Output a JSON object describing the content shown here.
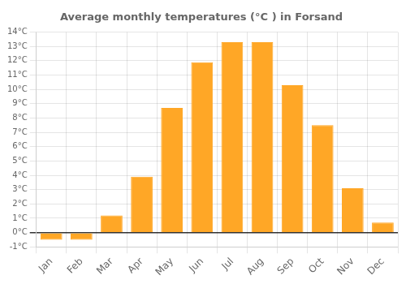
{
  "chart_data": {
    "type": "bar",
    "title": "Average monthly temperatures (°C ) in Forsand",
    "categories": [
      "Jan",
      "Feb",
      "Mar",
      "Apr",
      "May",
      "Jun",
      "Jul",
      "Aug",
      "Sep",
      "Oct",
      "Nov",
      "Dec"
    ],
    "values": [
      -0.5,
      -0.5,
      1.2,
      3.9,
      8.7,
      11.9,
      13.3,
      13.3,
      10.3,
      7.5,
      3.1,
      0.7
    ],
    "color": "#FFA726",
    "ylim": [
      -1,
      14
    ],
    "yticks": [
      {
        "value": -1,
        "label": "-1°C"
      },
      {
        "value": 0,
        "label": "0°C"
      },
      {
        "value": 1,
        "label": "1°C"
      },
      {
        "value": 2,
        "label": "2°C"
      },
      {
        "value": 3,
        "label": "3°C"
      },
      {
        "value": 4,
        "label": "4°C"
      },
      {
        "value": 5,
        "label": "5°C"
      },
      {
        "value": 6,
        "label": "6°C"
      },
      {
        "value": 7,
        "label": "7°C"
      },
      {
        "value": 8,
        "label": "8°C"
      },
      {
        "value": 9,
        "label": "9°C"
      },
      {
        "value": 10,
        "label": "10°C"
      },
      {
        "value": 11,
        "label": "11°C"
      },
      {
        "value": 12,
        "label": "12°C"
      },
      {
        "value": 13,
        "label": "13°C"
      },
      {
        "value": 14,
        "label": "14°C"
      }
    ],
    "grid": true
  }
}
